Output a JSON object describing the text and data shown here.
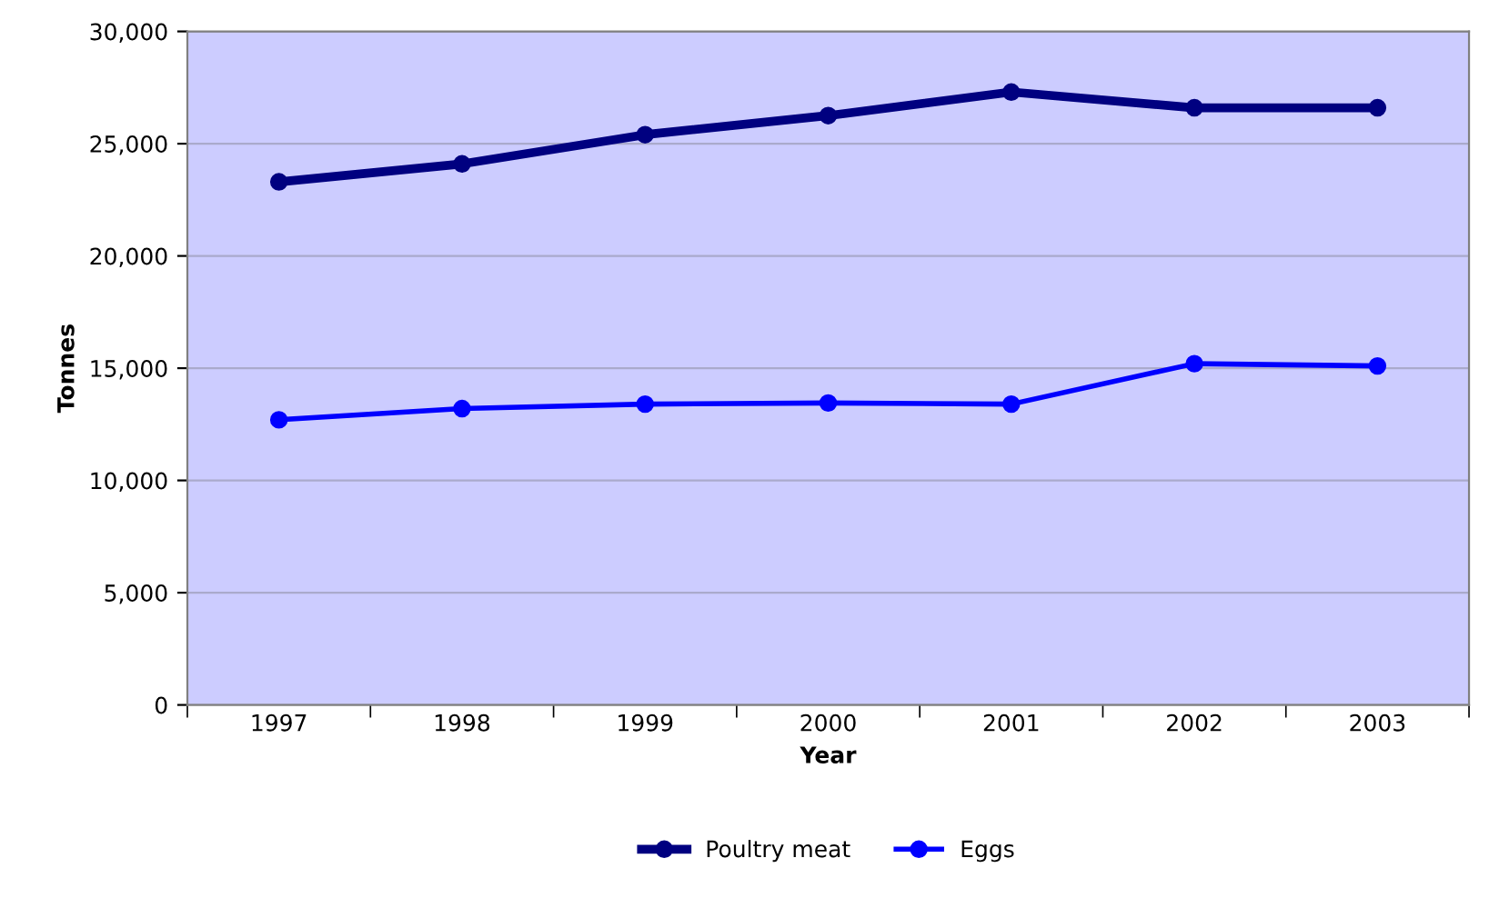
{
  "chart_data": {
    "type": "line",
    "xlabel": "Year",
    "ylabel": "Tonnes",
    "categories": [
      "1997",
      "1998",
      "1999",
      "2000",
      "2001",
      "2002",
      "2003"
    ],
    "series": [
      {
        "name": "Poultry meat",
        "color": "#000080",
        "values": [
          23300,
          24100,
          25400,
          26250,
          27300,
          26600,
          26600
        ]
      },
      {
        "name": "Eggs",
        "color": "#0000ff",
        "values": [
          12700,
          13200,
          13400,
          13450,
          13400,
          15200,
          15100
        ]
      }
    ],
    "ylim": [
      0,
      30000
    ],
    "yticks": [
      {
        "value": 0,
        "label": "0"
      },
      {
        "value": 5000,
        "label": "5,000"
      },
      {
        "value": 10000,
        "label": "10,000"
      },
      {
        "value": 15000,
        "label": "15,000"
      },
      {
        "value": 20000,
        "label": "20,000"
      },
      {
        "value": 25000,
        "label": "25,000"
      },
      {
        "value": 30000,
        "label": "30,000"
      }
    ],
    "grid": "y",
    "legend": "bottom",
    "marker": "circle",
    "line_style": "solid"
  }
}
